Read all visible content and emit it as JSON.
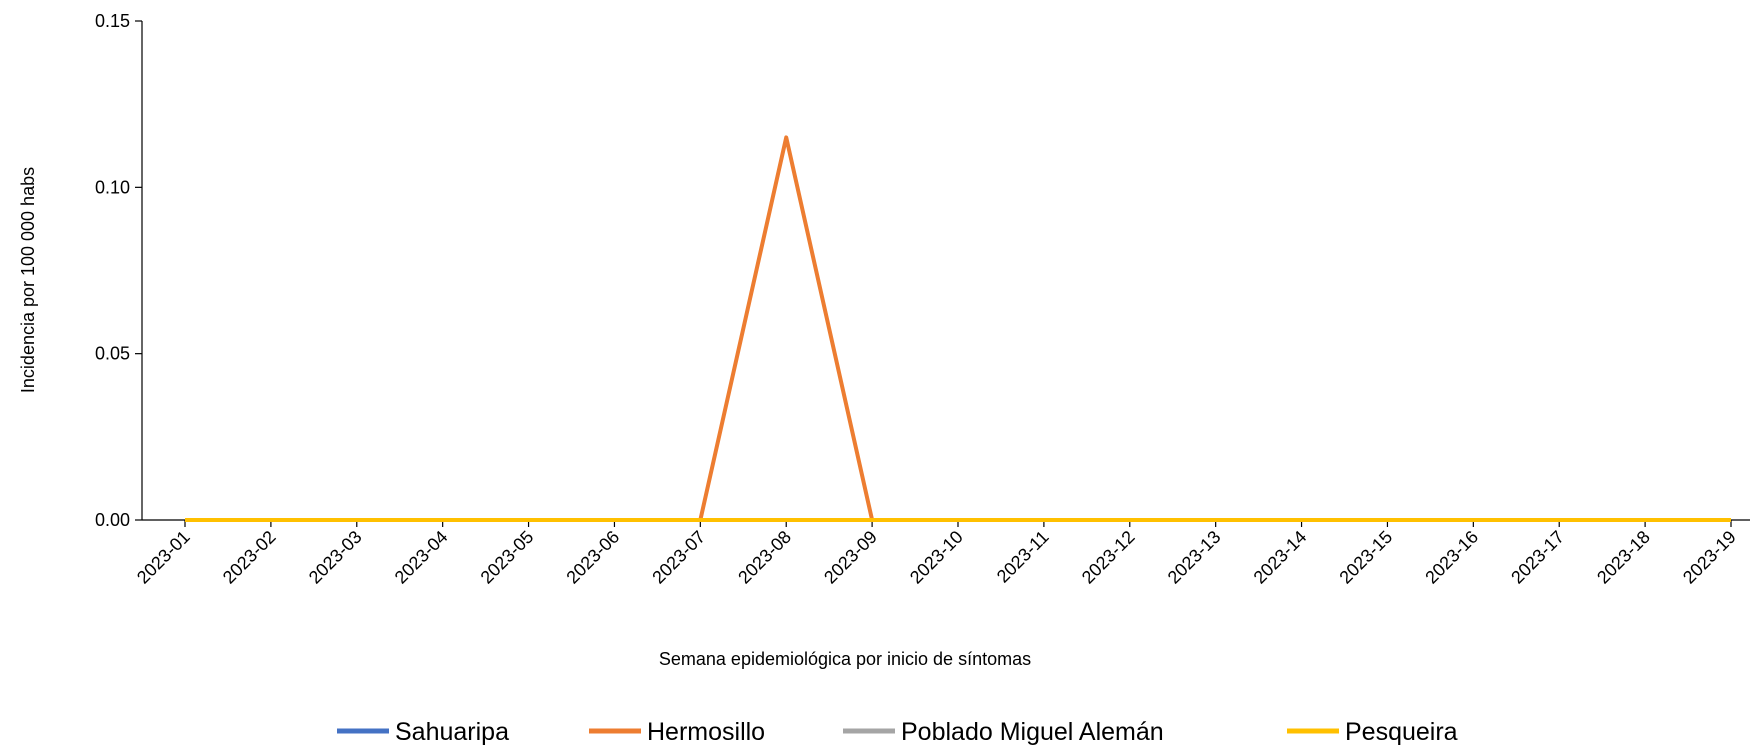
{
  "chart_data": {
    "type": "line",
    "x_label": "Semana epidemiológica  por inicio de síntomas",
    "y_label": "Incidencia  por 100 000 habs",
    "categories": [
      "2023-01",
      "2023-02",
      "2023-03",
      "2023-04",
      "2023-05",
      "2023-06",
      "2023-07",
      "2023-08",
      "2023-09",
      "2023-10",
      "2023-11",
      "2023-12",
      "2023-13",
      "2023-14",
      "2023-15",
      "2023-16",
      "2023-17",
      "2023-18",
      "2023-19"
    ],
    "series": [
      {
        "name": "Sahuaripa",
        "color": "#4472c4",
        "values": [
          0,
          0,
          0,
          0,
          0,
          0,
          0,
          0,
          0,
          0,
          0,
          0,
          0,
          0,
          0,
          0,
          0,
          0,
          0
        ]
      },
      {
        "name": "Hermosillo",
        "color": "#ed7d31",
        "values": [
          0,
          0,
          0,
          0,
          0,
          0,
          0,
          0.115,
          0,
          0,
          0,
          0,
          0,
          0,
          0,
          0,
          0,
          0,
          0
        ]
      },
      {
        "name": "Poblado Miguel Alemán",
        "color": "#a5a5a5",
        "values": [
          0,
          0,
          0,
          0,
          0,
          0,
          0,
          0,
          0,
          0,
          0,
          0,
          0,
          0,
          0,
          0,
          0,
          0,
          0
        ]
      },
      {
        "name": "Pesqueira",
        "color": "#ffc000",
        "values": [
          0,
          0,
          0,
          0,
          0,
          0,
          0,
          0,
          0,
          0,
          0,
          0,
          0,
          0,
          0,
          0,
          0,
          0,
          0
        ]
      }
    ],
    "ylim": [
      0,
      0.15
    ],
    "yticks": [
      {
        "value": 0,
        "label": "0.00"
      },
      {
        "value": 0.05,
        "label": "0.05"
      },
      {
        "value": 0.1,
        "label": "0.10"
      },
      {
        "value": 0.15,
        "label": "0.15"
      }
    ],
    "legend": "bottom"
  }
}
